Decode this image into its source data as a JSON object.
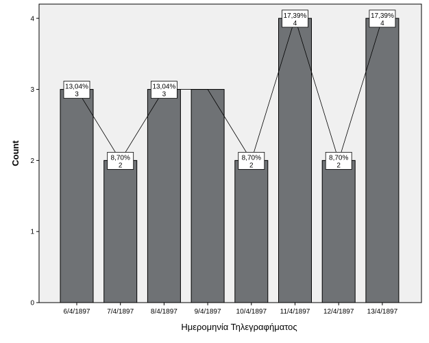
{
  "chart_data": {
    "type": "bar",
    "x_label": "Ημερομηνία Τηλεγραφήματος",
    "y_label": "Count",
    "categories": [
      "6/4/1897",
      "7/4/1897",
      "8/4/1897",
      "9/4/1897",
      "10/4/1897",
      "11/4/1897",
      "12/4/1897",
      "13/4/1897"
    ],
    "values": [
      3,
      2,
      3,
      3,
      2,
      4,
      2,
      4
    ],
    "percent_labels": [
      "13,04%",
      "8,70%",
      "13,04%",
      null,
      "8,70%",
      "17,39%",
      "8,70%",
      "17,39%"
    ],
    "color": "#6f7275",
    "ylim": [
      0,
      4.2
    ],
    "yticks": [
      0,
      1,
      2,
      3,
      4
    ]
  }
}
